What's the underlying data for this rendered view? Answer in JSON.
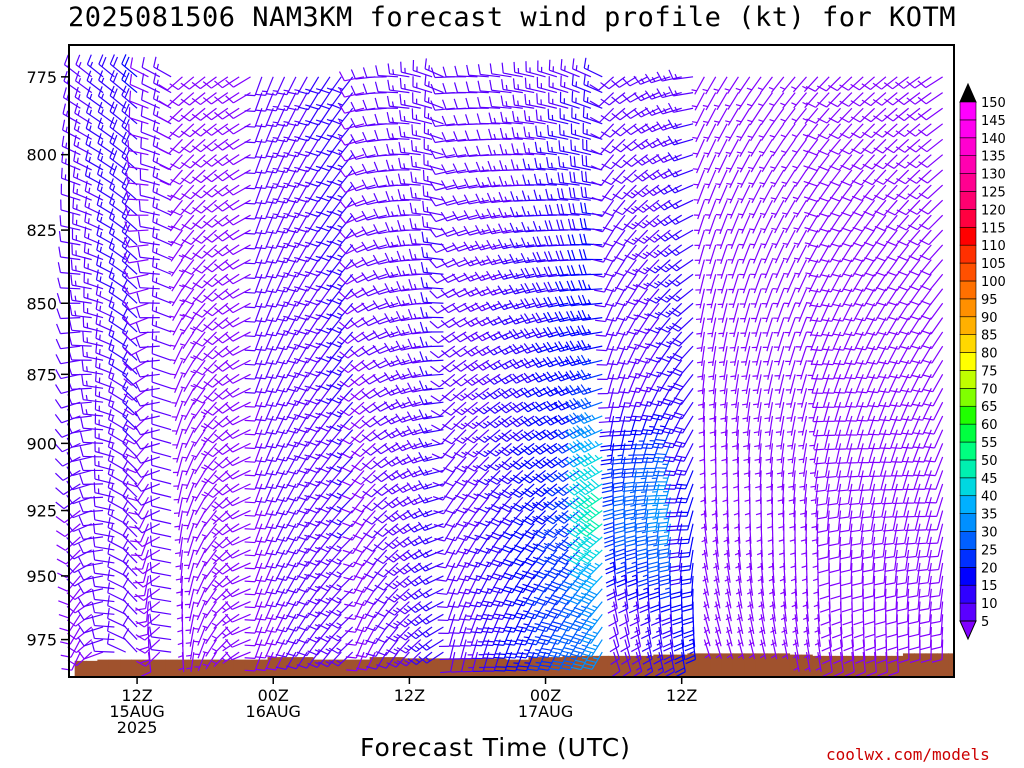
{
  "title": "2025081506 NAM3KM forecast wind profile (kt) for KOTM",
  "credit": "coolwx.com/models",
  "chart_data": {
    "type": "wind-barb-profile",
    "title": "2025081506 NAM3KM forecast wind profile (kt) for KOTM",
    "xlabel": "Forecast Time (UTC)",
    "ylabel": "",
    "y_scale": "log-pressure",
    "ylim_hPa": [
      990,
      765
    ],
    "xlim_hours": [
      6,
      84
    ],
    "y_ticks": [
      775,
      800,
      825,
      850,
      875,
      900,
      925,
      950,
      975
    ],
    "x_ticks": [
      {
        "hour": 12,
        "lines": [
          "12Z",
          "15AUG",
          "2025"
        ]
      },
      {
        "hour": 24,
        "lines": [
          "00Z",
          "16AUG"
        ]
      },
      {
        "hour": 36,
        "lines": [
          "12Z"
        ]
      },
      {
        "hour": 48,
        "lines": [
          "00Z",
          "17AUG"
        ]
      },
      {
        "hour": 60,
        "lines": [
          "12Z"
        ]
      }
    ],
    "colorbar": {
      "levels": [
        5,
        10,
        15,
        20,
        25,
        30,
        35,
        40,
        45,
        50,
        55,
        60,
        65,
        70,
        75,
        80,
        85,
        90,
        95,
        100,
        105,
        110,
        115,
        120,
        125,
        130,
        135,
        140,
        145,
        150
      ],
      "colors": [
        "#8000ff",
        "#5a00ff",
        "#3000ff",
        "#0000ff",
        "#0030ff",
        "#0060ff",
        "#0090ff",
        "#00b0ff",
        "#00d8e0",
        "#00f0b0",
        "#00ff80",
        "#00ff40",
        "#20ff00",
        "#80ff00",
        "#c0ff00",
        "#ffff00",
        "#ffd800",
        "#ffb000",
        "#ff9000",
        "#ff7000",
        "#ff5000",
        "#ff3000",
        "#ff0000",
        "#ff0040",
        "#ff0070",
        "#ff0090",
        "#ff00b0",
        "#ff00d0",
        "#ff00f0",
        "#ff00ff"
      ]
    },
    "terrain_color": "#a0522d",
    "times_hours": [
      7,
      8,
      9,
      10,
      11,
      12,
      13,
      14,
      15,
      16,
      17,
      18,
      19,
      20,
      21,
      22,
      23,
      24,
      25,
      26,
      27,
      28,
      29,
      30,
      31,
      32,
      33,
      34,
      35,
      36,
      37,
      38,
      39,
      40,
      41,
      42,
      43,
      44,
      45,
      46,
      47,
      48,
      49,
      50,
      51,
      52,
      53,
      54,
      55,
      56,
      57,
      58,
      59,
      60,
      61,
      62,
      63,
      64,
      65,
      66,
      67,
      68,
      69,
      70,
      71,
      72,
      73,
      74,
      75,
      76,
      77,
      78,
      79,
      80,
      81,
      82,
      83
    ],
    "surface_pressure_hPa": [
      983.5,
      983.5,
      983,
      983,
      983,
      983,
      983,
      983,
      983,
      983,
      983,
      983,
      983,
      983,
      983,
      983,
      983,
      982,
      982,
      982,
      982,
      983,
      983,
      983,
      983,
      983,
      982,
      982,
      982,
      982.5,
      982.5,
      982.5,
      982.5,
      982.5,
      982.5,
      982.5,
      982.5,
      982.5,
      983,
      983,
      982,
      982,
      982,
      981.5,
      981.5,
      981.5,
      981.5,
      981.5,
      981.5,
      981.5,
      981.5,
      981,
      981,
      981,
      980.5,
      980.5,
      980.5,
      980.5,
      980.5,
      980.5,
      980.5,
      980.5,
      980.5,
      981,
      981,
      981.5,
      981.5,
      981.5,
      981.5,
      981.5,
      981.5,
      981.5,
      981.5,
      980.5,
      980.5,
      980.5,
      980.5
    ],
    "series": [
      {
        "levels_hPa": [
          990,
          985,
          980,
          975,
          970,
          965,
          960,
          955,
          950,
          945,
          940,
          935,
          930,
          925,
          920,
          915,
          910,
          905,
          900,
          895,
          890,
          885,
          880,
          875,
          870,
          865,
          860,
          855,
          850,
          845,
          840,
          835,
          830,
          825,
          820,
          815,
          810,
          805,
          800,
          795,
          790,
          785,
          780,
          775,
          770
        ]
      },
      {
        "segments": [
          {
            "hours": [
              6,
              13
            ],
            "dir": [
              [
                180,
                340
              ],
              [
                310,
                310
              ]
            ],
            "speed": [
              [
                8,
                12
              ],
              [
                12,
                22
              ]
            ]
          },
          {
            "hours": [
              13,
              16
            ],
            "dir": [
              [
                170,
                330
              ],
              [
                300,
                300
              ]
            ],
            "speed": [
              [
                8,
                12
              ],
              [
                10,
                16
              ]
            ]
          },
          {
            "hours": [
              16,
              23
            ],
            "dir": [
              [
                175,
                260
              ],
              [
                230,
                240
              ]
            ],
            "speed": [
              [
                5,
                8
              ],
              [
                8,
                10
              ]
            ]
          },
          {
            "hours": [
              23,
              32
            ],
            "dir": [
              [
                200,
                230
              ],
              [
                200,
                220
              ]
            ],
            "speed": [
              [
                8,
                15
              ],
              [
                12,
                18
              ]
            ]
          },
          {
            "hours": [
              32,
              40
            ],
            "dir": [
              [
                200,
                240
              ],
              [
                260,
                300
              ]
            ],
            "speed": [
              [
                8,
                18
              ],
              [
                10,
                15
              ]
            ]
          },
          {
            "hours": [
              40,
              54
            ],
            "dir": [
              [
                190,
                210
              ],
              [
                270,
                300
              ]
            ],
            "speed": [
              [
                10,
                40
              ],
              [
                10,
                15
              ]
            ]
          },
          {
            "hours": [
              54,
              62
            ],
            "dir": [
              [
                160,
                170
              ],
              [
                230,
                270
              ]
            ],
            "speed": [
              [
                10,
                25
              ],
              [
                10,
                15
              ]
            ]
          },
          {
            "hours": [
              62,
              84
            ],
            "dir": [
              [
                160,
                180
              ],
              [
                210,
                240
              ]
            ],
            "speed": [
              [
                5,
                10
              ],
              [
                5,
                10
              ]
            ]
          }
        ]
      }
    ]
  }
}
